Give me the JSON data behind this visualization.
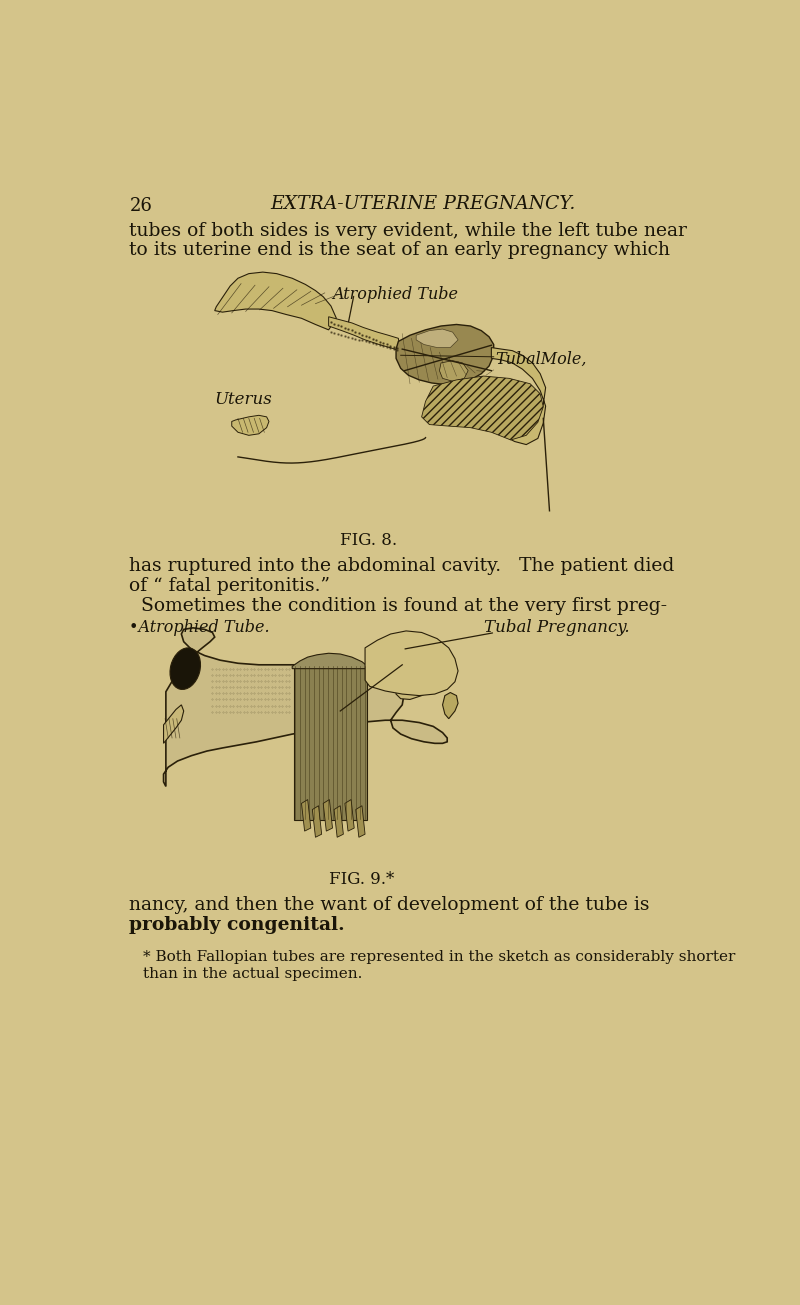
{
  "background_color": "#d4c48a",
  "text_color": "#1a1508",
  "dark_color": "#1a1508",
  "page_number": "26",
  "header_title": "EXTRA-UTERINE PREGNANCY.",
  "body_text_line1": "tubes of both sides is very evident, while the left tube near",
  "body_text_line2": "to its uterine end is the seat of an early pregnancy which",
  "fig8_caption": "FIG. 8.",
  "fig8_label_atrophied": "Atrophied Tube",
  "fig8_label_uterus": "Uterus",
  "fig8_label_tubal_mole": "TubalMole,",
  "body_text_line3": "has ruptured into the abdominal cavity.   The patient died",
  "body_text_line4": "of “ fatal peritonitis.”",
  "body_text_line5": "  Sometimes the condition is found at the very first preg-",
  "fig9_label_atrophied": "•Atrophied Tube.",
  "fig9_label_tubal": "Tubal Pregnancy.",
  "fig9_caption": "FIG. 9.*",
  "body_text_line6": "nancy, and then the want of development of the tube is",
  "body_text_line7": "probably congenital.",
  "footnote": "* Both Fallopian tubes are represented in the sketch as considerably shorter",
  "footnote2": "than in the actual specimen."
}
